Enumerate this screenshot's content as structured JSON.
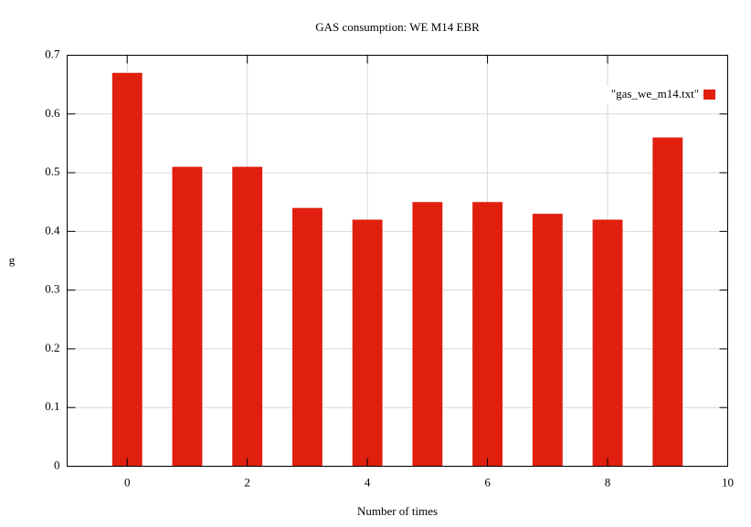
{
  "chart_data": {
    "type": "bar",
    "title": "GAS consumption: WE M14 EBR",
    "x_label": "Number of times",
    "y_label": "g",
    "x": [
      0,
      1,
      2,
      3,
      4,
      5,
      6,
      7,
      8,
      9
    ],
    "series": [
      {
        "name": "\"gas_we_m14.txt\"",
        "color": "#e01f0e",
        "values": [
          0.67,
          0.51,
          0.51,
          0.44,
          0.42,
          0.45,
          0.45,
          0.43,
          0.42,
          0.56
        ]
      }
    ],
    "bar_width": 0.5,
    "xlim": [
      -1,
      10
    ],
    "xticks": [
      0,
      2,
      4,
      6,
      8,
      10
    ],
    "ylim": [
      0,
      0.7
    ],
    "yticks": [
      0,
      0.1,
      0.2,
      0.3,
      0.4,
      0.5,
      0.6,
      0.7
    ],
    "grid": true,
    "legend": "top-right"
  }
}
